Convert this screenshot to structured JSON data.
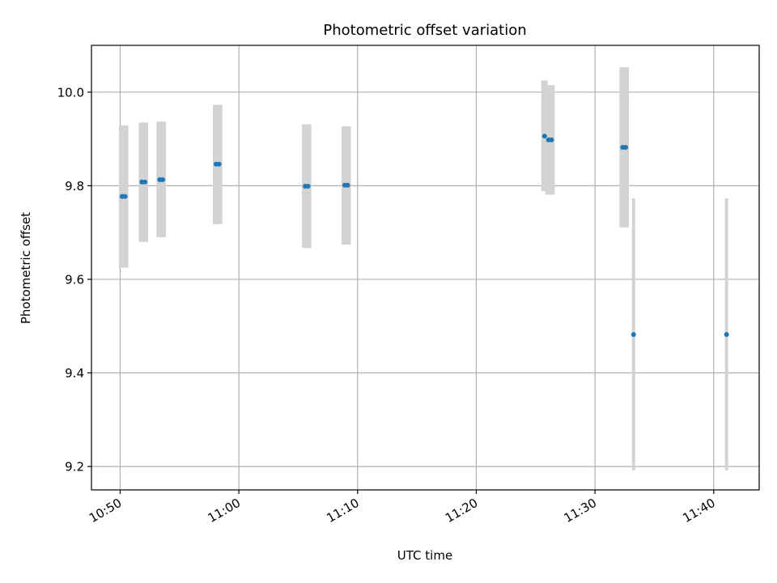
{
  "chart_data": {
    "type": "scatter",
    "title": "Photometric offset variation",
    "xlabel": "UTC time",
    "ylabel": "Photometric offset",
    "x_ticks": [
      "10:50",
      "11:00",
      "11:10",
      "11:20",
      "11:30",
      "11:40"
    ],
    "y_ticks": [
      "9.2",
      "9.4",
      "9.6",
      "9.8",
      "10.0"
    ],
    "xlim": [
      "10:47:35",
      "11:43:50"
    ],
    "ylim": [
      9.15,
      10.1
    ],
    "grid": true,
    "marker_color": "#1f77b4",
    "errorbar_color": "#d3d3d3",
    "points": [
      {
        "x": "10:50:10",
        "y": 9.777,
        "ylow": 9.625,
        "yhigh": 9.929
      },
      {
        "x": "10:50:25",
        "y": 9.777,
        "ylow": 9.625,
        "yhigh": 9.929
      },
      {
        "x": "10:51:50",
        "y": 9.808,
        "ylow": 9.68,
        "yhigh": 9.935
      },
      {
        "x": "10:52:05",
        "y": 9.808,
        "ylow": 9.68,
        "yhigh": 9.935
      },
      {
        "x": "10:53:20",
        "y": 9.813,
        "ylow": 9.69,
        "yhigh": 9.937
      },
      {
        "x": "10:53:35",
        "y": 9.813,
        "ylow": 9.69,
        "yhigh": 9.937
      },
      {
        "x": "10:58:05",
        "y": 9.846,
        "ylow": 9.718,
        "yhigh": 9.973
      },
      {
        "x": "10:58:20",
        "y": 9.846,
        "ylow": 9.718,
        "yhigh": 9.973
      },
      {
        "x": "11:05:35",
        "y": 9.799,
        "ylow": 9.667,
        "yhigh": 9.931
      },
      {
        "x": "11:05:50",
        "y": 9.799,
        "ylow": 9.667,
        "yhigh": 9.931
      },
      {
        "x": "11:08:55",
        "y": 9.801,
        "ylow": 9.674,
        "yhigh": 9.927
      },
      {
        "x": "11:09:10",
        "y": 9.801,
        "ylow": 9.674,
        "yhigh": 9.927
      },
      {
        "x": "11:25:45",
        "y": 9.906,
        "ylow": 9.788,
        "yhigh": 10.025
      },
      {
        "x": "11:26:05",
        "y": 9.898,
        "ylow": 9.781,
        "yhigh": 10.015
      },
      {
        "x": "11:26:20",
        "y": 9.898,
        "ylow": 9.781,
        "yhigh": 10.015
      },
      {
        "x": "11:32:20",
        "y": 9.882,
        "ylow": 9.711,
        "yhigh": 10.053
      },
      {
        "x": "11:32:35",
        "y": 9.882,
        "ylow": 9.711,
        "yhigh": 10.053
      },
      {
        "x": "11:33:15",
        "y": 9.482,
        "ylow": 9.192,
        "yhigh": 9.773
      },
      {
        "x": "11:41:05",
        "y": 9.482,
        "ylow": 9.192,
        "yhigh": 9.773
      }
    ]
  }
}
